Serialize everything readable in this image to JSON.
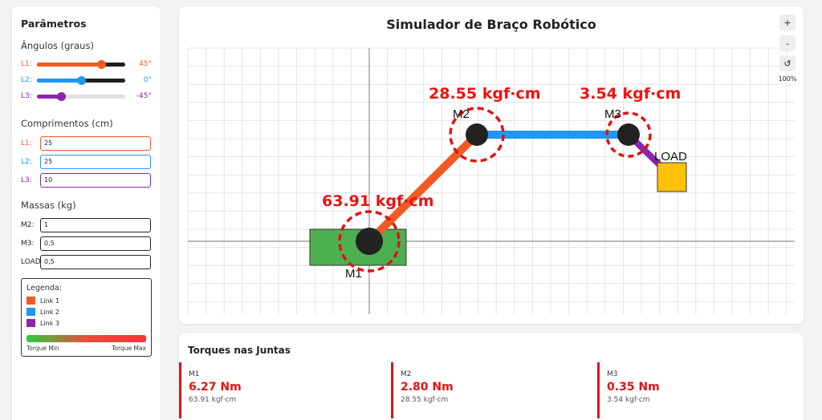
{
  "sidebar": {
    "title": "Parâmetros",
    "angles": {
      "section": "Ângulos (graus)",
      "sliders": [
        {
          "label": "L1:",
          "value": "45°",
          "color": "#f15a24",
          "fraction": 0.73
        },
        {
          "label": "L2:",
          "value": "0°",
          "color": "#2196f3",
          "fraction": 0.5
        },
        {
          "label": "L3:",
          "value": "-45°",
          "color": "#8e24aa",
          "fraction": 0.27
        }
      ]
    },
    "lengths": {
      "section": "Comprimentos (cm)",
      "fields": [
        {
          "label": "L1:",
          "value": "25",
          "color": "#f15a24"
        },
        {
          "label": "L2:",
          "value": "25",
          "color": "#2196f3"
        },
        {
          "label": "L3:",
          "value": "10",
          "color": "#8e24aa"
        }
      ]
    },
    "masses": {
      "section": "Massas (kg)",
      "fields": [
        {
          "label": "M2:",
          "value": "1"
        },
        {
          "label": "M3:",
          "value": "0,5"
        },
        {
          "label": "LOAD:",
          "value": "0,5"
        }
      ]
    },
    "legend": {
      "title": "Legenda:",
      "items": [
        {
          "label": "Link 1",
          "color": "#f15a24"
        },
        {
          "label": "Link 2",
          "color": "#2196f3"
        },
        {
          "label": "Link 3",
          "color": "#8e24aa"
        }
      ],
      "min_label": "Torque Min",
      "max_label": "Torque Max"
    }
  },
  "main": {
    "title": "Simulador de Braço Robótico",
    "zoom": {
      "plus": "+",
      "minus": "-",
      "reset": "↺",
      "level": "100%"
    },
    "joints": [
      {
        "name": "M1",
        "torque": "63.91 kgf·cm"
      },
      {
        "name": "M2",
        "torque": "28.55 kgf·cm"
      },
      {
        "name": "M3",
        "torque": "3.54 kgf·cm"
      }
    ],
    "load_label": "LOAD",
    "colors": {
      "base": "#4caf50",
      "load": "#ffc107",
      "torque_text": "#ee1111"
    }
  },
  "torques": {
    "title": "Torques nas Juntas",
    "cards": [
      {
        "name": "M1",
        "nm": "6.27 Nm",
        "kgf": "63.91 kgf·cm"
      },
      {
        "name": "M2",
        "nm": "2.80 Nm",
        "kgf": "28.55 kgf·cm"
      },
      {
        "name": "M3",
        "nm": "0.35 Nm",
        "kgf": "3.54 kgf·cm"
      }
    ]
  }
}
